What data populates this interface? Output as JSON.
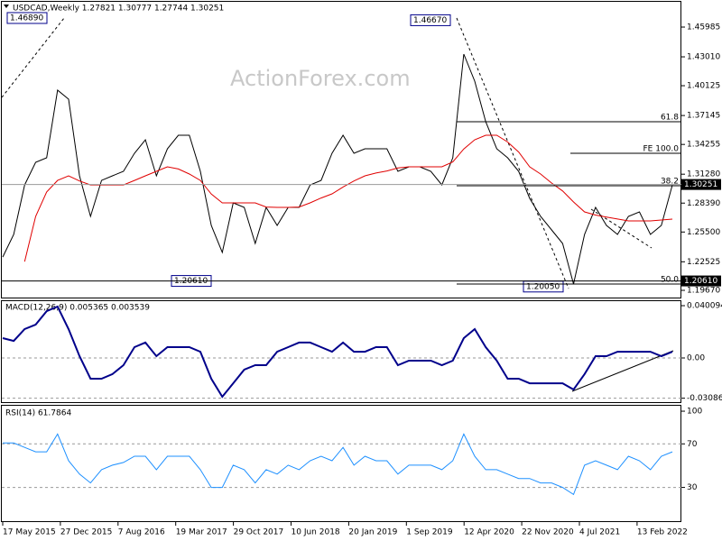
{
  "chart_data": [
    {
      "type": "line",
      "title": "USDCAD,Weekly  1.27821 1.30777 1.27744 1.30251",
      "watermark": "ActionForex.com",
      "ylim": [
        1.1895,
        1.4842
      ],
      "yticks": [
        1.45985,
        {
          "value": 1.4301,
          "label": "1.43010"
        },
        1.40125,
        1.37145,
        1.34255,
        {
          "value": 1.3128,
          "label": "1.31280"
        },
        {
          "value": 1.2839,
          "label": "1.28390"
        },
        {
          "value": 1.255,
          "label": "1.25500"
        },
        1.22525,
        {
          "value": 1.1967,
          "label": "1.19670"
        }
      ],
      "series": [
        {
          "name": "Close",
          "color": "#000000",
          "values": [
            1.23,
            1.2526,
            1.3021,
            1.3247,
            1.3292,
            1.3968,
            1.3878,
            1.3112,
            1.2706,
            1.3066,
            1.3112,
            1.3157,
            1.3337,
            1.3472,
            1.3112,
            1.3382,
            1.3517,
            1.3517,
            1.3157,
            1.2616,
            1.2346,
            1.2841,
            1.2796,
            1.2436,
            1.2796,
            1.2616,
            1.2796,
            1.2796,
            1.3021,
            1.3066,
            1.3337,
            1.3517,
            1.3337,
            1.3382,
            1.3382,
            1.3382,
            1.3157,
            1.3202,
            1.3202,
            1.3157,
            1.3021,
            1.3292,
            1.4328,
            1.4058,
            1.3652,
            1.3382,
            1.3292,
            1.3157,
            1.2886,
            1.2706,
            1.2571,
            1.2436,
            1.203,
            1.2526,
            1.2796,
            1.2616,
            1.2526,
            1.2706,
            1.2751,
            1.2526,
            1.2616,
            1.3021
          ]
        },
        {
          "name": "MA",
          "color": "#e00000",
          "values": [
            null,
            null,
            1.2255,
            1.2706,
            1.295,
            1.3066,
            1.3112,
            1.306,
            1.3021,
            1.3021,
            1.3021,
            1.3021,
            1.3066,
            1.3112,
            1.3157,
            1.3202,
            1.318,
            1.313,
            1.3066,
            1.293,
            1.2841,
            1.2841,
            1.2841,
            1.2841,
            1.28,
            1.2796,
            1.2796,
            1.28,
            1.2841,
            1.289,
            1.2931,
            1.3,
            1.306,
            1.3112,
            1.314,
            1.316,
            1.319,
            1.3202,
            1.3202,
            1.3202,
            1.3202,
            1.325,
            1.338,
            1.3472,
            1.3517,
            1.3517,
            1.345,
            1.335,
            1.3202,
            1.313,
            1.304,
            1.296,
            1.285,
            1.2751,
            1.272,
            1.27,
            1.268,
            1.2661,
            1.2661,
            1.2661,
            1.267,
            1.2679
          ]
        }
      ],
      "price_markers": [
        {
          "value": 1.30251,
          "label": "1.30251"
        },
        {
          "value": 1.2061,
          "label": "1.20610"
        }
      ],
      "extremes": [
        {
          "value": 1.4689,
          "label": "1.46890"
        },
        {
          "value": 1.4667,
          "label": "1.46670"
        },
        {
          "value": 1.2061,
          "label": "1.20610"
        },
        {
          "value": 1.2005,
          "label": "1.20050"
        }
      ],
      "levels": [
        {
          "value": 1.3652,
          "label": "61.8"
        },
        {
          "value": 1.3337,
          "label": "FE 100.0"
        },
        {
          "value": 1.3013,
          "label": "38.2"
        },
        {
          "value": 1.203,
          "label": "50.0"
        }
      ]
    },
    {
      "type": "line",
      "title": "MACD(12,26,9) 0.005365 0.003539",
      "ylim": [
        -0.03456,
        0.04424
      ],
      "yticks": [
        0.040094,
        {
          "value": 0,
          "label": "0.00"
        },
        -0.03086
      ],
      "series": [
        {
          "name": "MACD",
          "color": "#00008b",
          "values": [
            0.0152,
            0.0131,
            0.0221,
            0.0256,
            0.0359,
            0.0394,
            0.0221,
            0.0014,
            -0.0159,
            -0.0159,
            -0.0124,
            -0.0055,
            0.0083,
            0.0118,
            0.0014,
            0.0083,
            0.0083,
            0.0083,
            0.0048,
            -0.0159,
            -0.0297,
            -0.0194,
            -0.009,
            -0.0055,
            -0.0055,
            0.0048,
            0.0083,
            0.0118,
            0.0118,
            0.0083,
            0.0048,
            0.0118,
            0.0048,
            0.0048,
            0.0083,
            0.0083,
            -0.0055,
            -0.0021,
            -0.0021,
            -0.0021,
            -0.0055,
            -0.0021,
            0.0152,
            0.0221,
            0.0083,
            -0.0021,
            -0.0159,
            -0.0159,
            -0.0194,
            -0.0194,
            -0.0194,
            -0.0194,
            -0.0242,
            -0.0124,
            0.0014,
            0.0014,
            0.0048,
            0.0048,
            0.0048,
            0.0048,
            0.0014,
            0.0048
          ]
        }
      ]
    },
    {
      "type": "line",
      "title": "RSI(14) 61.7864",
      "ylim": [
        -1,
        105
      ],
      "yticks": [
        100,
        70,
        30
      ],
      "series": [
        {
          "name": "RSI",
          "color": "#1e90ff",
          "values": [
            70.8,
            70.8,
            66.7,
            62.7,
            62.7,
            79.0,
            54.5,
            42.2,
            34.1,
            46.3,
            50.4,
            52.9,
            58.6,
            58.6,
            46.3,
            58.6,
            58.6,
            58.6,
            46.3,
            30.0,
            30.0,
            50.4,
            46.3,
            34.1,
            46.3,
            42.2,
            50.4,
            46.3,
            54.5,
            58.6,
            54.5,
            66.7,
            50.4,
            58.6,
            54.5,
            54.5,
            42.2,
            50.4,
            50.4,
            50.4,
            46.3,
            54.5,
            79.0,
            58.6,
            46.3,
            46.3,
            42.2,
            38.2,
            38.2,
            34.1,
            34.1,
            30.0,
            23.5,
            50.4,
            54.5,
            50.4,
            46.3,
            58.6,
            54.5,
            46.3,
            58.6,
            62.7
          ]
        }
      ],
      "date_labels": [
        "17 May 2015",
        "27 Dec 2015",
        "7 Aug 2016",
        "19 Mar 2017",
        "29 Oct 2017",
        "10 Jun 2018",
        "20 Jan 2019",
        "1 Sep 2019",
        "12 Apr 2020",
        "22 Nov 2020",
        "4 Jul 2021",
        "13 Feb 2022"
      ]
    }
  ]
}
